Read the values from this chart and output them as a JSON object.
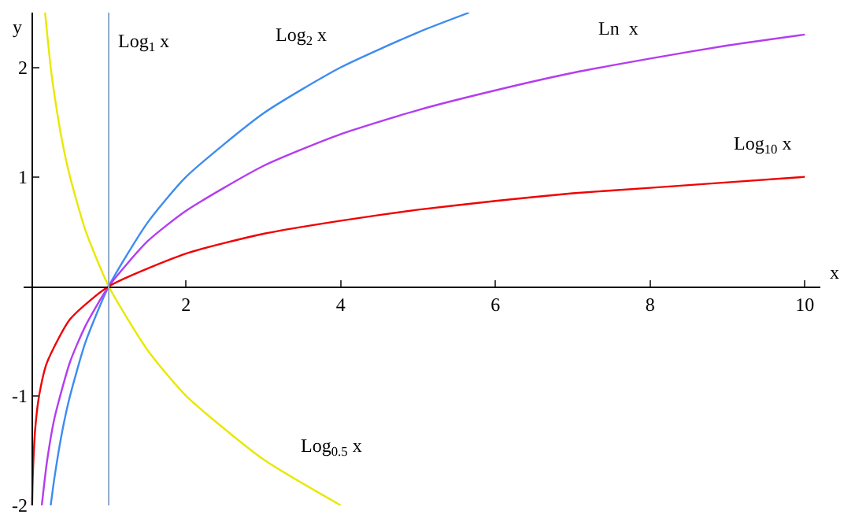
{
  "chart_data": {
    "type": "line",
    "xlabel": "x",
    "ylabel": "y",
    "xlim": [
      -0.1,
      10.2
    ],
    "ylim": [
      -2,
      2.5
    ],
    "xticks": [
      2,
      4,
      6,
      8,
      10
    ],
    "yticks": [
      -2,
      -1,
      1,
      2
    ],
    "marker": "none",
    "line_style": "solid",
    "series": [
      {
        "color": "#3c8cf0",
        "x": [
          0.25,
          0.3,
          0.4,
          0.5,
          0.7,
          1,
          1.5,
          2,
          3,
          4,
          5,
          5.66
        ],
        "values": [
          -2,
          -1.74,
          -1.32,
          -1,
          -0.51,
          0,
          0.58,
          1,
          1.58,
          2,
          2.32,
          2.5
        ]
      },
      {
        "color": "#b43cf0",
        "x": [
          0.135,
          0.2,
          0.3,
          0.5,
          0.7,
          1,
          1.5,
          2,
          3,
          4,
          5,
          6,
          7,
          8,
          9,
          10
        ],
        "values": [
          -2,
          -1.61,
          -1.2,
          -0.69,
          -0.36,
          0,
          0.41,
          0.69,
          1.1,
          1.39,
          1.61,
          1.79,
          1.95,
          2.08,
          2.2,
          2.3
        ]
      },
      {
        "color": "#f00000",
        "x": [
          0.01,
          0.02,
          0.05,
          0.1,
          0.2,
          0.5,
          1,
          2,
          3,
          4,
          5,
          6,
          7,
          8,
          9,
          10
        ],
        "values": [
          -2,
          -1.7,
          -1.3,
          -1,
          -0.7,
          -0.3,
          0,
          0.3,
          0.48,
          0.6,
          0.7,
          0.78,
          0.85,
          0.9,
          0.95,
          1
        ]
      },
      {
        "color": "#e8e800",
        "x": [
          0.177,
          0.25,
          0.3,
          0.4,
          0.5,
          0.7,
          1,
          1.5,
          2,
          3,
          4
        ],
        "values": [
          2.5,
          2,
          1.74,
          1.32,
          1,
          0.51,
          0,
          -0.58,
          -1,
          -1.58,
          -2
        ]
      }
    ],
    "ref_lines": [
      {
        "axis": "x",
        "value": 1,
        "label": "Log$_{1}$ x",
        "color": "#8fa8c8"
      }
    ],
    "annotations": [
      {
        "text": "Log$_{2}$ x",
        "x": 4,
        "y": 2
      },
      {
        "text": "Ln  x",
        "x": 8,
        "y": 2.08
      },
      {
        "text": "Log$_{10}$ x",
        "x": 10,
        "y": 1
      },
      {
        "text": "Log$_{0.5}$ x",
        "x": 3,
        "y": -1.58
      }
    ]
  }
}
